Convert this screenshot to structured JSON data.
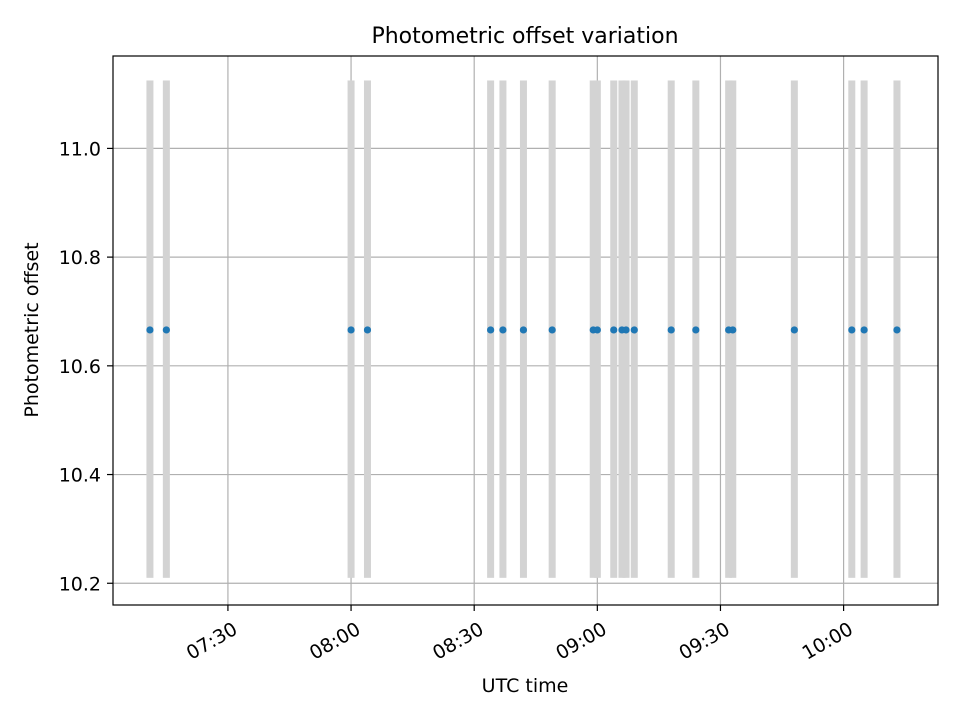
{
  "chart_data": {
    "type": "scatter",
    "title": "Photometric offset variation",
    "xlabel": "UTC time",
    "ylabel": "Photometric offset",
    "x_axis_kind": "time",
    "xlim": [
      "07:02",
      "10:23"
    ],
    "ylim": [
      10.16,
      11.17
    ],
    "xticks": [
      "07:30",
      "08:00",
      "08:30",
      "09:00",
      "09:30",
      "10:00"
    ],
    "yticks": [
      "10.2",
      "10.4",
      "10.6",
      "10.8",
      "11.0"
    ],
    "grid": true,
    "error_bar_range": [
      10.21,
      11.125
    ],
    "series": [
      {
        "marker_color": "#1f77b4",
        "errorbar_color": "#d3d3d3",
        "points": [
          {
            "x": "07:11",
            "y": 10.666
          },
          {
            "x": "07:15",
            "y": 10.666
          },
          {
            "x": "08:00",
            "y": 10.666
          },
          {
            "x": "08:04",
            "y": 10.666
          },
          {
            "x": "08:34",
            "y": 10.666
          },
          {
            "x": "08:37",
            "y": 10.666
          },
          {
            "x": "08:42",
            "y": 10.666
          },
          {
            "x": "08:49",
            "y": 10.666
          },
          {
            "x": "08:59",
            "y": 10.666
          },
          {
            "x": "09:00",
            "y": 10.666
          },
          {
            "x": "09:04",
            "y": 10.666
          },
          {
            "x": "09:06",
            "y": 10.666
          },
          {
            "x": "09:07",
            "y": 10.666
          },
          {
            "x": "09:09",
            "y": 10.666
          },
          {
            "x": "09:18",
            "y": 10.666
          },
          {
            "x": "09:24",
            "y": 10.666
          },
          {
            "x": "09:32",
            "y": 10.666
          },
          {
            "x": "09:33",
            "y": 10.666
          },
          {
            "x": "09:48",
            "y": 10.666
          },
          {
            "x": "10:02",
            "y": 10.666
          },
          {
            "x": "10:05",
            "y": 10.666
          },
          {
            "x": "10:13",
            "y": 10.666
          }
        ]
      }
    ]
  }
}
